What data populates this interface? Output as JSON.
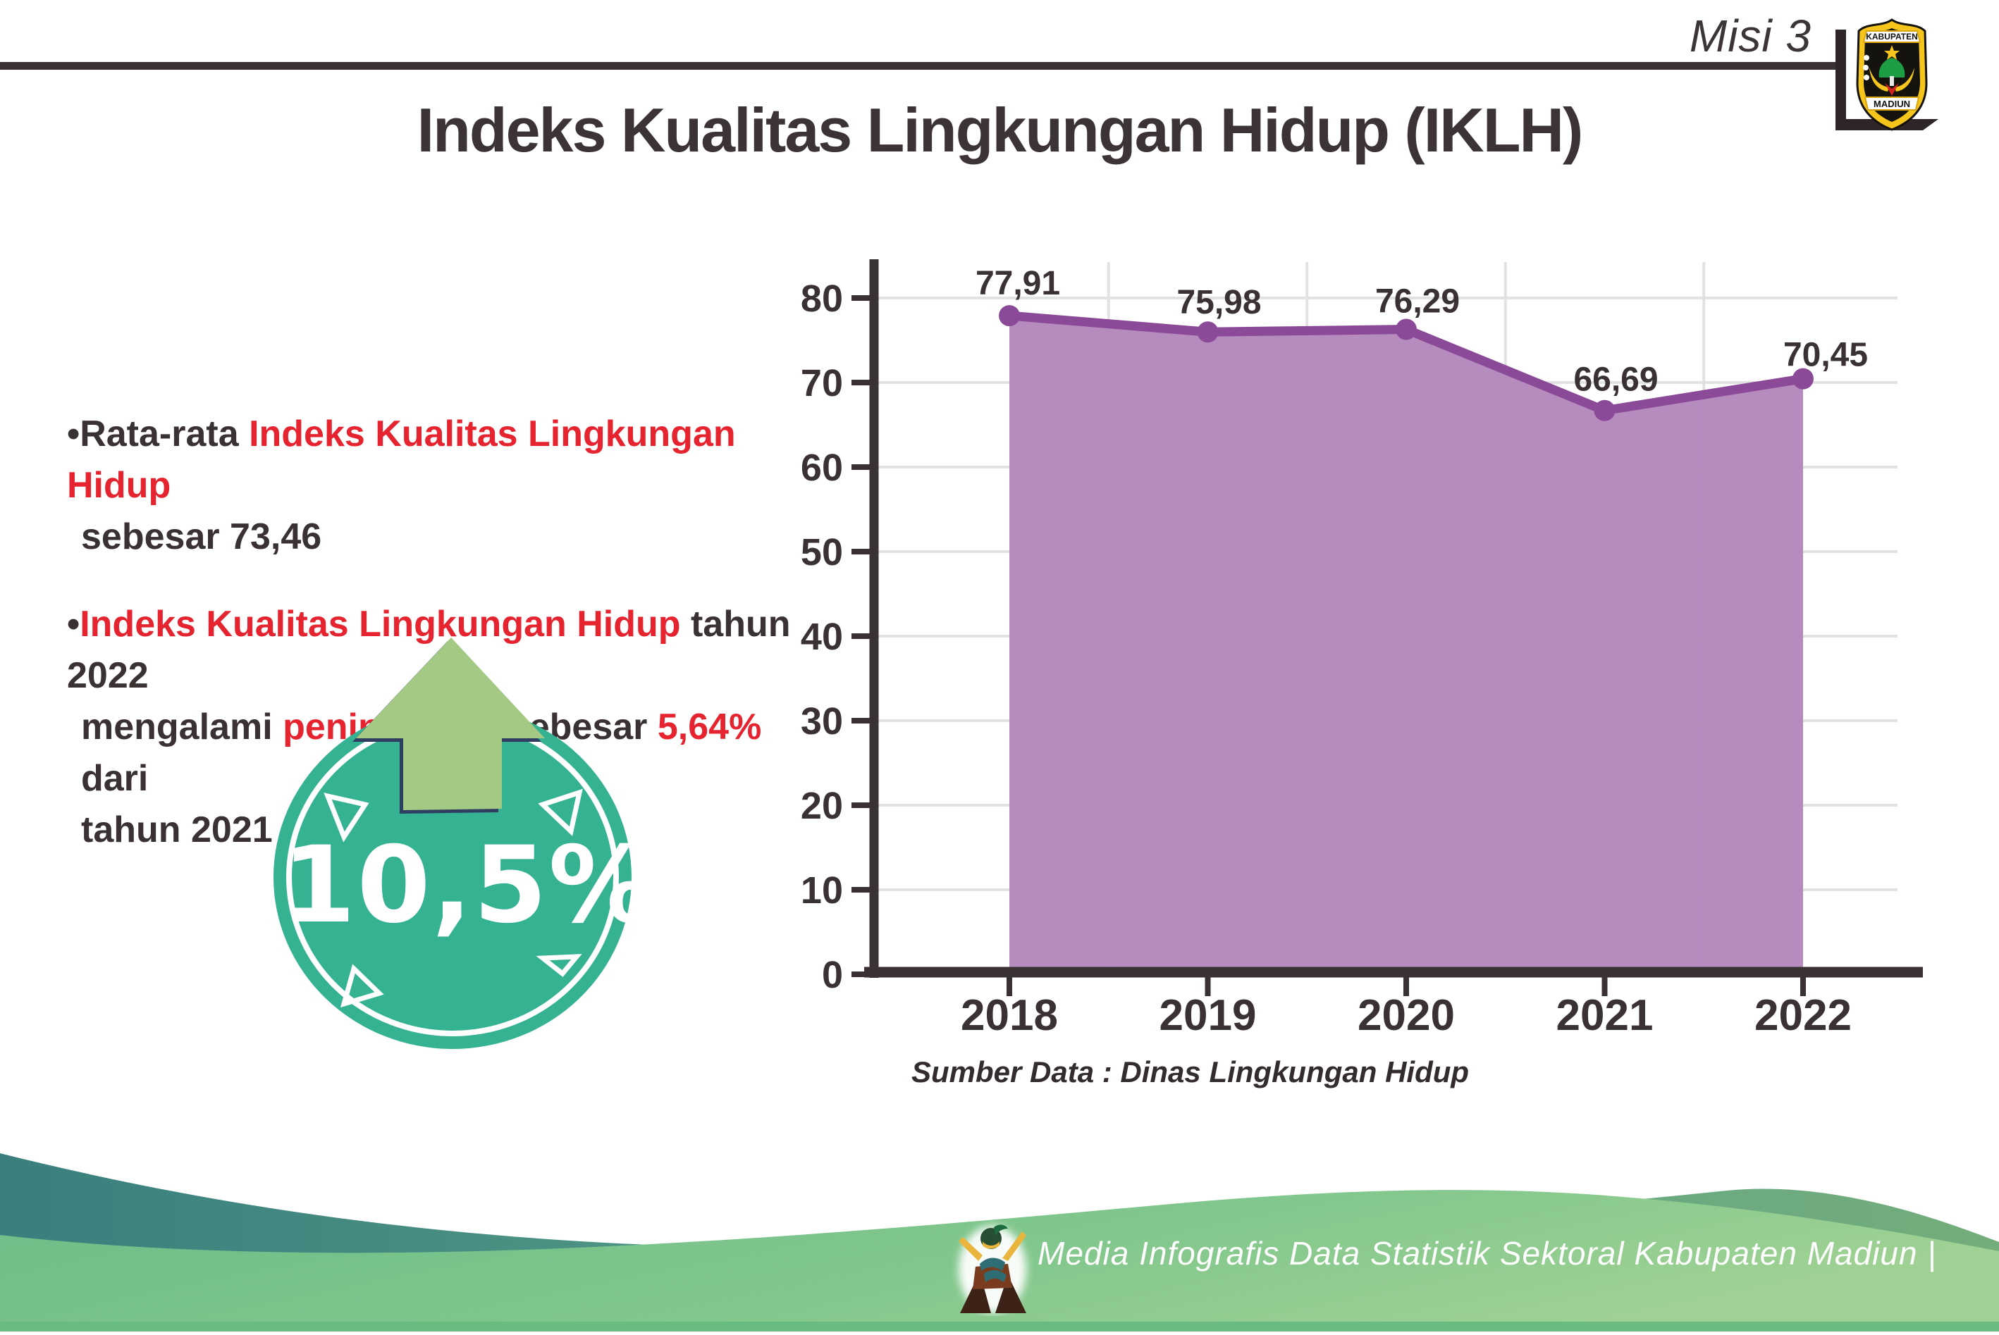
{
  "header": {
    "misi_label": "Misi 3",
    "logo": {
      "top_text": "KABUPATEN",
      "bottom_text": "MADIUN"
    }
  },
  "title": "Indeks Kualitas Lingkungan Hidup (IKLH)",
  "bullets": [
    {
      "lines": [
        [
          {
            "t": "•Rata-rata ",
            "c": "dark"
          },
          {
            "t": "Indeks Kualitas Lingkungan Hidup",
            "c": "red"
          }
        ],
        [
          {
            "t": "sebesar 73,46",
            "c": "dark"
          }
        ]
      ]
    },
    {
      "lines": [
        [
          {
            "t": "•",
            "c": "dark"
          },
          {
            "t": "Indeks Kualitas Lingkungan Hidup",
            "c": "red"
          },
          {
            "t": " tahun 2022",
            "c": "dark"
          }
        ],
        [
          {
            "t": "mengalami ",
            "c": "dark"
          },
          {
            "t": "peningkatan",
            "c": "red"
          },
          {
            "t": " sebesar ",
            "c": "dark"
          },
          {
            "t": "5,64%",
            "c": "red"
          },
          {
            "t": " dari",
            "c": "dark"
          }
        ],
        [
          {
            "t": "tahun 2021",
            "c": "dark"
          }
        ]
      ]
    }
  ],
  "badge": {
    "value": "10,5%"
  },
  "chart_data": {
    "type": "area",
    "categories": [
      "2018",
      "2019",
      "2020",
      "2021",
      "2022"
    ],
    "values": [
      77.91,
      75.98,
      76.29,
      66.69,
      70.45
    ],
    "value_labels": [
      "77,91",
      "75,98",
      "76,29",
      "66,69",
      "70,45"
    ],
    "title": "",
    "xlabel": "",
    "ylabel": "",
    "ylim": [
      0,
      80
    ],
    "ytick_step": 10,
    "yticks": [
      "0",
      "10",
      "20",
      "30",
      "40",
      "50",
      "60",
      "70",
      "80"
    ],
    "grid": true,
    "legend": "none",
    "line_color": "#8a4a97",
    "fill_color": "#b285bb",
    "source": "Sumber Data : Dinas Lingkungan Hidup"
  },
  "source_note": "Sumber Data : Dinas Lingkungan Hidup",
  "footer": {
    "credit": "Media Infografis Data Statistik Sektoral Kabupaten Madiun |"
  },
  "colors": {
    "dark": "#3a3132",
    "red": "#e62430",
    "axis": "#3a3132",
    "grid": "#e2e2e2",
    "badge_teal": "#34b292",
    "arrow_green": "#a3c984",
    "arrow_outline": "#2e3d60",
    "footer_teal_dark": "#3a7f7d",
    "footer_teal_light": "#74ad7c",
    "footer_green_left": "#6cbc88",
    "footer_green_right": "#9ed193"
  }
}
